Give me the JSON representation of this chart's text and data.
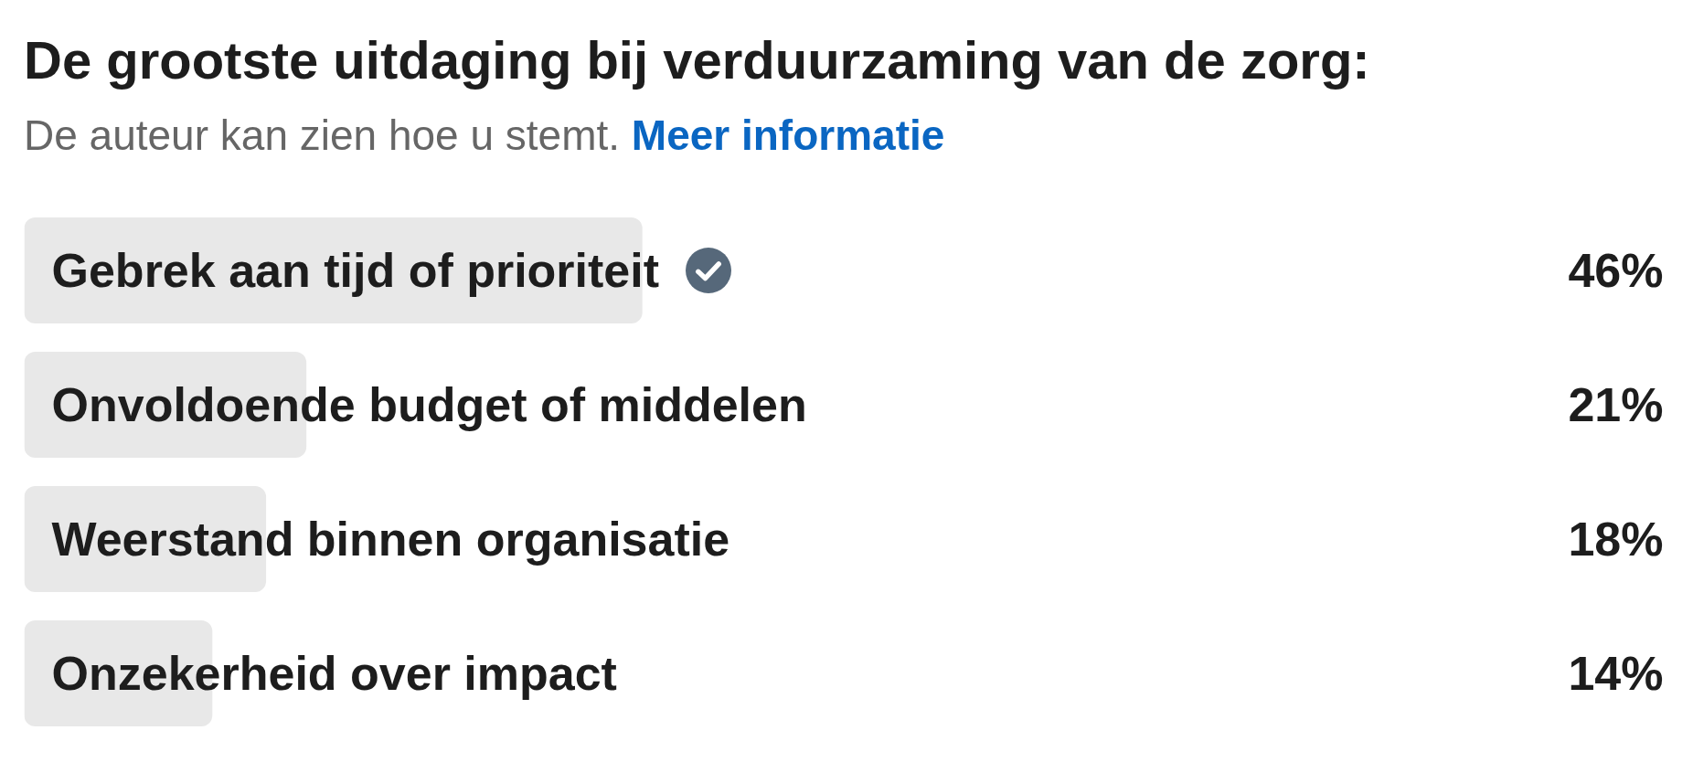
{
  "chart_data": {
    "type": "bar",
    "orientation": "horizontal",
    "title": "De grootste uitdaging bij verduurzaming van de zorg:",
    "subtitle": "De auteur kan zien hoe u stemt.",
    "annotations": [
      "Meer informatie"
    ],
    "categories": [
      "Gebrek aan tijd of prioriteit",
      "Onvoldoende budget of middelen",
      "Weerstand binnen organisatie",
      "Onzekerheid over impact"
    ],
    "values": [
      46,
      21,
      18,
      14
    ],
    "value_labels": [
      "46%",
      "21%",
      "18%",
      "14%"
    ],
    "color": "#e8e8e8",
    "tick_labels": "y",
    "grid": false
  }
}
